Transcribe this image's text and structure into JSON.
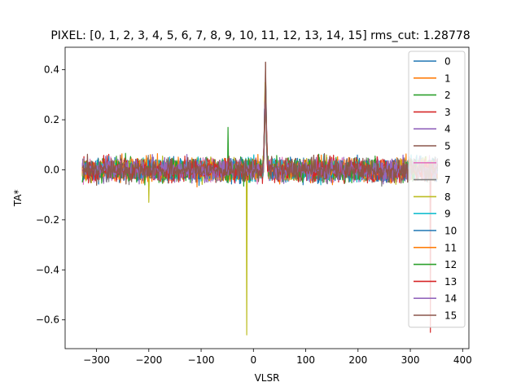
{
  "chart_data": {
    "type": "line",
    "title": "PIXEL: [0, 1, 2, 3, 4, 5, 6, 7, 8, 9, 10, 11, 12, 13, 14, 15]   rms_cut: 1.28778",
    "xlabel": "VLSR",
    "ylabel": "TA*",
    "xlim": [
      -360,
      412
    ],
    "ylim": [
      -0.715,
      0.49
    ],
    "x_ticks": [
      -300,
      -200,
      -100,
      0,
      100,
      200,
      300,
      400
    ],
    "x_tick_labels": [
      "−300",
      "−200",
      "−100",
      "0",
      "100",
      "200",
      "300",
      "400"
    ],
    "y_ticks": [
      -0.6,
      -0.4,
      -0.2,
      0.0,
      0.2,
      0.4
    ],
    "y_tick_labels": [
      "−0.6",
      "−0.4",
      "−0.2",
      "0.0",
      "0.2",
      "0.4"
    ],
    "x_range": [
      -327,
      352
    ],
    "grid": false,
    "legend_position": "top-right",
    "noise_rms": 0.022,
    "series": [
      {
        "name": "0",
        "color": "#1f77b4",
        "features": []
      },
      {
        "name": "1",
        "color": "#ff7f0e",
        "features": []
      },
      {
        "name": "2",
        "color": "#2ca02c",
        "features": [
          {
            "x": -49,
            "y": 0.17
          }
        ]
      },
      {
        "name": "3",
        "color": "#d62728",
        "features": [
          {
            "x": 338,
            "y": -0.65
          }
        ]
      },
      {
        "name": "4",
        "color": "#9467bd",
        "features": []
      },
      {
        "name": "5",
        "color": "#8c564b",
        "features": [
          {
            "x": 23,
            "y": 0.43
          }
        ]
      },
      {
        "name": "6",
        "color": "#e377c2",
        "features": []
      },
      {
        "name": "7",
        "color": "#7f7f7f",
        "features": []
      },
      {
        "name": "8",
        "color": "#bcbd22",
        "features": [
          {
            "x": -13,
            "y": -0.66
          },
          {
            "x": -200,
            "y": -0.13
          }
        ]
      },
      {
        "name": "9",
        "color": "#17becf",
        "features": []
      },
      {
        "name": "10",
        "color": "#1f77b4",
        "features": []
      },
      {
        "name": "11",
        "color": "#ff7f0e",
        "features": []
      },
      {
        "name": "12",
        "color": "#2ca02c",
        "features": []
      },
      {
        "name": "13",
        "color": "#d62728",
        "features": []
      },
      {
        "name": "14",
        "color": "#9467bd",
        "features": []
      },
      {
        "name": "15",
        "color": "#8c564b",
        "features": [
          {
            "x": 23,
            "y": 0.43
          }
        ]
      }
    ]
  }
}
